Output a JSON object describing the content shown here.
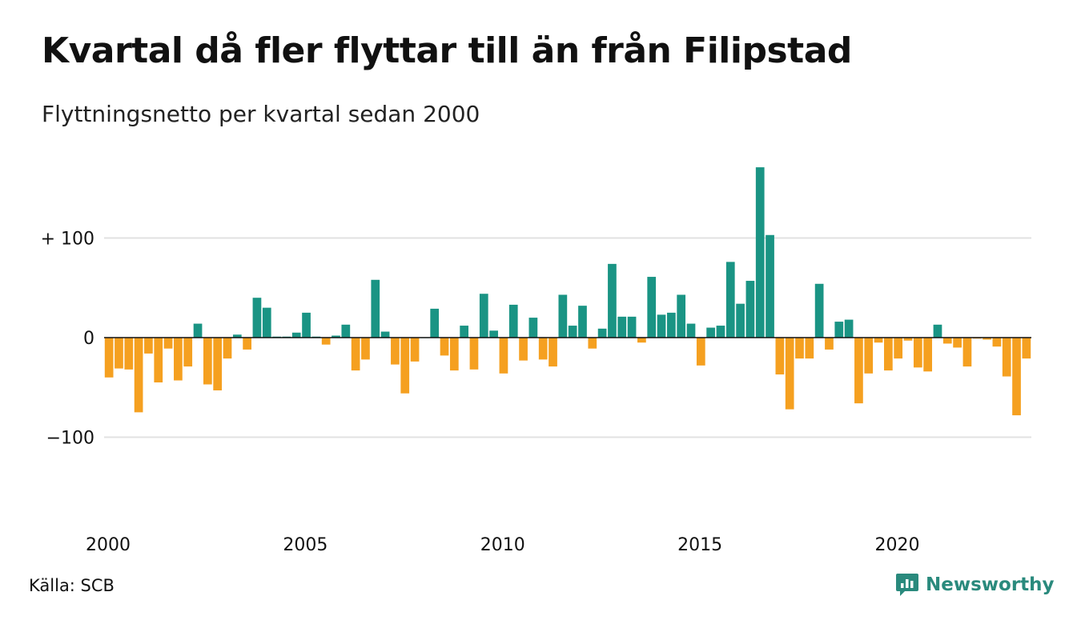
{
  "title": "Kvartal då fler flyttar till än från Filipstad",
  "subtitle": "Flyttningsnetto per kvartal sedan 2000",
  "source": "Källa: SCB",
  "brand": "Newsworthy",
  "colors": {
    "positive": "#1a9484",
    "negative": "#f5a020",
    "grid": "#e2e2e2",
    "zero": "#111111",
    "brand": "#2a8a7d"
  },
  "chart_data": {
    "type": "bar",
    "x_start": 2000,
    "periods_per_year": 4,
    "ylim": [
      -185,
      175
    ],
    "yticks": [
      {
        "value": 100,
        "label": "+ 100"
      },
      {
        "value": 0,
        "label": "0"
      },
      {
        "value": -100,
        "label": "−100"
      }
    ],
    "xticks": [
      {
        "value": 2000,
        "label": "2000"
      },
      {
        "value": 2005,
        "label": "2005"
      },
      {
        "value": 2010,
        "label": "2010"
      },
      {
        "value": 2015,
        "label": "2015"
      },
      {
        "value": 2020,
        "label": "2020"
      }
    ],
    "grid": true,
    "values": [
      -40,
      -31,
      -32,
      -75,
      -16,
      -45,
      -11,
      -43,
      -29,
      14,
      -47,
      -53,
      -21,
      3,
      -12,
      40,
      30,
      1,
      1,
      5,
      25,
      1,
      -7,
      2,
      13,
      -33,
      -22,
      58,
      6,
      -27,
      -56,
      -24,
      0,
      29,
      -18,
      -33,
      12,
      -32,
      44,
      7,
      -36,
      33,
      -23,
      20,
      -22,
      -29,
      43,
      12,
      32,
      -11,
      9,
      74,
      21,
      21,
      -5,
      61,
      23,
      25,
      43,
      14,
      -28,
      10,
      12,
      76,
      34,
      57,
      171,
      103,
      -37,
      -72,
      -21,
      -21,
      54,
      -12,
      16,
      18,
      -66,
      -36,
      -5,
      -33,
      -21,
      -3,
      -30,
      -34,
      13,
      -6,
      -10,
      -29,
      -1,
      -2,
      -9,
      -39,
      -78,
      -21
    ]
  }
}
